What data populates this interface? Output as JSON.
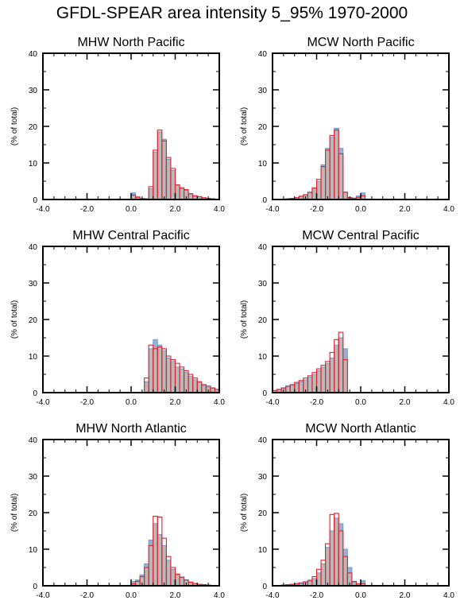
{
  "title": "GFDL-SPEAR area intensity 5_95% 1970-2000",
  "colors": {
    "gray": "#b9b9b9",
    "blue": "#8fb4dc",
    "red": "#e0202a",
    "axis": "#000000"
  },
  "chart_data": [
    {
      "type": "bar",
      "title": "MHW North Pacific",
      "ylabel": "(% of total)",
      "xlim": [
        -4.0,
        4.0
      ],
      "ylim": [
        0,
        40
      ],
      "xticks": [
        "-4.0",
        "-2.0",
        "0.0",
        "2.0",
        "4.0"
      ],
      "yticks": [
        "0",
        "10",
        "20",
        "30",
        "40"
      ],
      "bin_width": 0.2,
      "bin_starts": [
        0.0,
        0.2,
        0.4,
        0.6,
        0.8,
        1.0,
        1.2,
        1.4,
        1.6,
        1.8,
        2.0,
        2.2,
        2.4,
        2.6,
        2.8,
        3.0,
        3.2,
        3.4,
        3.6,
        3.8
      ],
      "series": [
        {
          "values": [
            1.8,
            0.8,
            0.3,
            0.2,
            3.0,
            13.0,
            18.5,
            16.5,
            11.0,
            8.0,
            4.0,
            3.0,
            2.5,
            1.5,
            1.0,
            0.7,
            0.4,
            0.3,
            0.2,
            0.1
          ]
        },
        {
          "values": [
            1.2,
            0.6,
            0.2,
            0.2,
            3.5,
            13.5,
            19.0,
            16.0,
            11.5,
            8.5,
            4.0,
            3.2,
            2.7,
            1.6,
            1.0,
            0.8,
            0.5,
            0.3,
            0.2,
            0.1
          ]
        }
      ]
    },
    {
      "type": "bar",
      "title": "MCW North Pacific",
      "ylabel": "(% of total)",
      "xlim": [
        -4.0,
        4.0
      ],
      "ylim": [
        0,
        40
      ],
      "xticks": [
        "-4.0",
        "-2.0",
        "0.0",
        "2.0",
        "4.0"
      ],
      "yticks": [
        "0",
        "10",
        "20",
        "30",
        "40"
      ],
      "bin_width": 0.2,
      "bin_starts": [
        -3.6,
        -3.4,
        -3.2,
        -3.0,
        -2.8,
        -2.6,
        -2.4,
        -2.2,
        -2.0,
        -1.8,
        -1.6,
        -1.4,
        -1.2,
        -1.0,
        -0.8,
        -0.6,
        -0.4,
        -0.2,
        0.0
      ],
      "series": [
        {
          "values": [
            0.1,
            0.2,
            0.3,
            0.5,
            0.8,
            1.2,
            1.8,
            3.0,
            5.0,
            9.5,
            14.0,
            17.0,
            19.5,
            14.0,
            2.0,
            0.6,
            0.4,
            1.0,
            1.8
          ]
        },
        {
          "values": [
            0.1,
            0.2,
            0.3,
            0.5,
            0.9,
            1.3,
            2.0,
            3.2,
            5.5,
            9.0,
            13.5,
            17.5,
            19.0,
            12.5,
            2.0,
            0.5,
            0.3,
            0.6,
            1.0
          ]
        }
      ]
    },
    {
      "type": "bar",
      "title": "MHW Central Pacific",
      "ylabel": "(% of total)",
      "xlim": [
        -4.0,
        4.0
      ],
      "ylim": [
        0,
        40
      ],
      "xticks": [
        "-4.0",
        "-2.0",
        "0.0",
        "2.0",
        "4.0"
      ],
      "yticks": [
        "0",
        "10",
        "20",
        "30",
        "40"
      ],
      "bin_width": 0.2,
      "bin_starts": [
        0.6,
        0.8,
        1.0,
        1.2,
        1.4,
        1.6,
        1.8,
        2.0,
        2.2,
        2.4,
        2.6,
        2.8,
        3.0,
        3.2,
        3.4,
        3.6,
        3.8
      ],
      "series": [
        {
          "values": [
            3.0,
            12.0,
            14.5,
            13.0,
            11.5,
            9.5,
            8.5,
            7.0,
            6.5,
            5.5,
            4.5,
            3.5,
            2.8,
            2.0,
            1.5,
            1.2,
            0.8
          ]
        },
        {
          "values": [
            4.0,
            13.0,
            12.0,
            12.5,
            12.0,
            10.0,
            9.0,
            8.0,
            7.0,
            6.0,
            5.0,
            4.0,
            3.0,
            2.2,
            1.8,
            1.3,
            0.9
          ]
        }
      ]
    },
    {
      "type": "bar",
      "title": "MCW Central Pacific",
      "ylabel": "(% of total)",
      "xlim": [
        -4.0,
        4.0
      ],
      "ylim": [
        0,
        40
      ],
      "xticks": [
        "-4.0",
        "-2.0",
        "0.0",
        "2.0",
        "4.0"
      ],
      "yticks": [
        "0",
        "10",
        "20",
        "30",
        "40"
      ],
      "bin_width": 0.2,
      "bin_starts": [
        -4.0,
        -3.8,
        -3.6,
        -3.4,
        -3.2,
        -3.0,
        -2.8,
        -2.6,
        -2.4,
        -2.2,
        -2.0,
        -1.8,
        -1.6,
        -1.4,
        -1.2,
        -1.0,
        -0.8
      ],
      "series": [
        {
          "values": [
            0.5,
            0.8,
            1.2,
            1.6,
            2.0,
            2.5,
            3.0,
            3.5,
            4.2,
            5.0,
            6.0,
            7.0,
            8.0,
            9.5,
            13.0,
            15.0,
            12.0
          ]
        },
        {
          "values": [
            0.6,
            0.9,
            1.3,
            1.8,
            2.2,
            2.8,
            3.3,
            4.0,
            4.6,
            5.5,
            6.5,
            7.5,
            8.5,
            11.0,
            14.5,
            16.5,
            9.0
          ]
        }
      ]
    },
    {
      "type": "bar",
      "title": "MHW North Atlantic",
      "ylabel": "(% of total)",
      "xlim": [
        -4.0,
        4.0
      ],
      "ylim": [
        0,
        40
      ],
      "xticks": [
        "-4.0",
        "-2.0",
        "0.0",
        "2.0",
        "4.0"
      ],
      "yticks": [
        "0",
        "10",
        "20",
        "30",
        "40"
      ],
      "bin_width": 0.2,
      "bin_starts": [
        0.0,
        0.2,
        0.4,
        0.6,
        0.8,
        1.0,
        1.2,
        1.4,
        1.6,
        1.8,
        2.0,
        2.2,
        2.4,
        2.6,
        2.8,
        3.0,
        3.2,
        3.4,
        3.6,
        3.8
      ],
      "series": [
        {
          "values": [
            1.2,
            1.6,
            3.0,
            6.0,
            12.5,
            17.0,
            14.0,
            11.0,
            7.0,
            4.5,
            3.0,
            2.2,
            1.5,
            1.0,
            0.6,
            0.4,
            0.3,
            0.2,
            0.1,
            0.1
          ]
        },
        {
          "values": [
            0.5,
            1.2,
            2.5,
            5.0,
            11.0,
            19.0,
            18.8,
            13.0,
            8.0,
            5.0,
            3.2,
            2.4,
            1.6,
            1.0,
            0.6,
            0.4,
            0.3,
            0.2,
            0.1,
            0.1
          ]
        }
      ]
    },
    {
      "type": "bar",
      "title": "MCW North Atlantic",
      "ylabel": "(% of total)",
      "xlim": [
        -4.0,
        4.0
      ],
      "ylim": [
        0,
        40
      ],
      "xticks": [
        "-4.0",
        "-2.0",
        "0.0",
        "2.0",
        "4.0"
      ],
      "yticks": [
        "0",
        "10",
        "20",
        "30",
        "40"
      ],
      "bin_width": 0.2,
      "bin_starts": [
        -3.6,
        -3.4,
        -3.2,
        -3.0,
        -2.8,
        -2.6,
        -2.4,
        -2.2,
        -2.0,
        -1.8,
        -1.6,
        -1.4,
        -1.2,
        -1.0,
        -0.8,
        -0.6,
        -0.4,
        -0.2,
        0.0
      ],
      "series": [
        {
          "values": [
            0.1,
            0.1,
            0.2,
            0.4,
            0.6,
            0.9,
            1.3,
            2.0,
            3.5,
            6.0,
            10.5,
            15.0,
            18.5,
            17.0,
            10.0,
            5.0,
            1.0,
            0.5,
            1.4
          ]
        },
        {
          "values": [
            0.2,
            0.3,
            0.4,
            0.6,
            0.8,
            1.1,
            1.5,
            2.5,
            4.5,
            7.0,
            11.5,
            19.5,
            19.8,
            15.0,
            8.0,
            3.5,
            1.2,
            0.5,
            0.6
          ]
        }
      ]
    }
  ]
}
